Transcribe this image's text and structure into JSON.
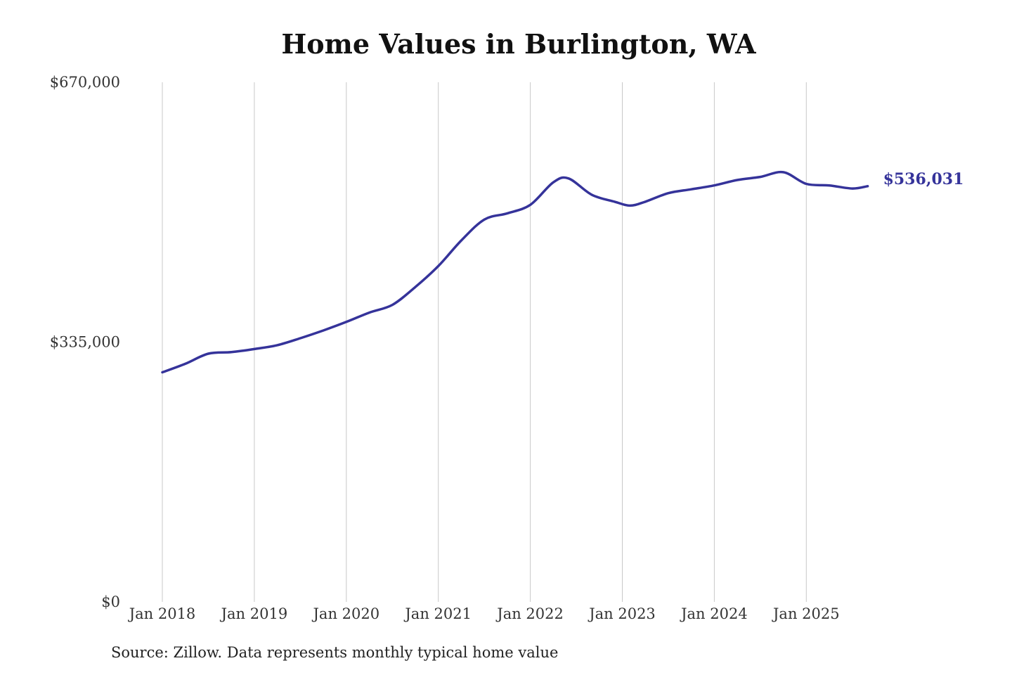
{
  "chart_data": {
    "type": "line",
    "title": "Home Values in Burlington, WA",
    "source": "Source: Zillow. Data represents monthly typical home value",
    "line_color": "#35339a",
    "grid_color": "#c8c8c8",
    "ylim": [
      0,
      670000
    ],
    "y_ticks": [
      {
        "value": 0,
        "label": "$0"
      },
      {
        "value": 335000,
        "label": "$335,000"
      },
      {
        "value": 670000,
        "label": "$670,000"
      }
    ],
    "x_ticks": [
      {
        "date": "2018-01",
        "label": "Jan 2018"
      },
      {
        "date": "2019-01",
        "label": "Jan 2019"
      },
      {
        "date": "2020-01",
        "label": "Jan 2020"
      },
      {
        "date": "2021-01",
        "label": "Jan 2021"
      },
      {
        "date": "2022-01",
        "label": "Jan 2022"
      },
      {
        "date": "2023-01",
        "label": "Jan 2023"
      },
      {
        "date": "2024-01",
        "label": "Jan 2024"
      },
      {
        "date": "2025-01",
        "label": "Jan 2025"
      }
    ],
    "grid": "vertical",
    "end_label": "$536,031",
    "series": [
      {
        "x": [
          "2018-01",
          "2018-04",
          "2018-07",
          "2018-10",
          "2019-01",
          "2019-04",
          "2019-07",
          "2019-10",
          "2020-01",
          "2020-04",
          "2020-07",
          "2020-10",
          "2021-01",
          "2021-04",
          "2021-07",
          "2021-10",
          "2022-01",
          "2022-04",
          "2022-06",
          "2022-09",
          "2022-12",
          "2023-02",
          "2023-04",
          "2023-07",
          "2023-10",
          "2024-01",
          "2024-04",
          "2024-07",
          "2024-10",
          "2025-01",
          "2025-04",
          "2025-07",
          "2025-09"
        ],
        "values": [
          296000,
          307000,
          320000,
          322000,
          326000,
          331000,
          340000,
          350000,
          361000,
          373000,
          383000,
          406000,
          433000,
          466000,
          493000,
          501000,
          512000,
          541000,
          546000,
          525000,
          516000,
          511000,
          516000,
          527000,
          532000,
          537000,
          544000,
          548000,
          554000,
          539000,
          537000,
          533000,
          536031
        ]
      }
    ]
  }
}
